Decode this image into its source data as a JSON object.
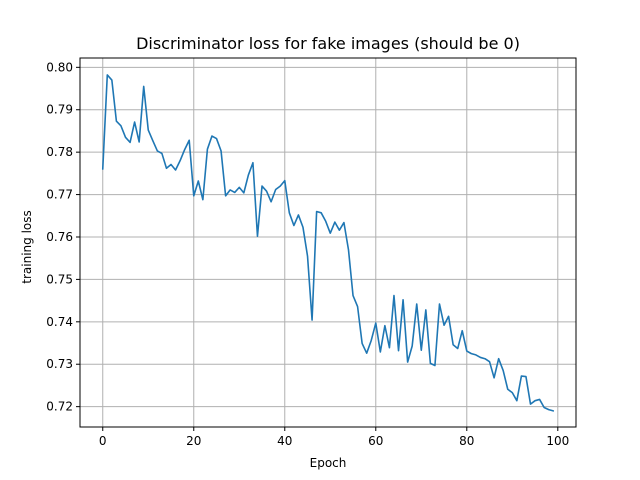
{
  "chart_data": {
    "type": "line",
    "title": "Discriminator loss for fake images (should be 0)",
    "xlabel": "Epoch",
    "ylabel": "training loss",
    "xlim": [
      -5,
      104
    ],
    "ylim": [
      0.7152,
      0.8022
    ],
    "xticks": [
      0,
      20,
      40,
      60,
      80,
      100
    ],
    "yticks": [
      0.72,
      0.73,
      0.74,
      0.75,
      0.76,
      0.77,
      0.78,
      0.79,
      0.8
    ],
    "grid": true,
    "colors": {
      "line": "#1f77b4",
      "grid": "#b0b0b0"
    },
    "series": [
      {
        "x": [
          0,
          1,
          2,
          3,
          4,
          5,
          6,
          7,
          8,
          9,
          10,
          11,
          12,
          13,
          14,
          15,
          16,
          17,
          18,
          19,
          20,
          21,
          22,
          23,
          24,
          25,
          26,
          27,
          28,
          29,
          30,
          31,
          32,
          33,
          34,
          35,
          36,
          37,
          38,
          39,
          40,
          41,
          42,
          43,
          44,
          45,
          46,
          47,
          48,
          49,
          50,
          51,
          52,
          53,
          54,
          55,
          56,
          57,
          58,
          59,
          60,
          61,
          62,
          63,
          64,
          65,
          66,
          67,
          68,
          69,
          70,
          71,
          72,
          73,
          74,
          75,
          76,
          77,
          78,
          79,
          80,
          81,
          82,
          83,
          84,
          85,
          86,
          87,
          88,
          89,
          90,
          91,
          92,
          93,
          94,
          95,
          96,
          97,
          98,
          99
        ],
        "values": [
          0.776,
          0.7982,
          0.797,
          0.7873,
          0.7862,
          0.7835,
          0.7823,
          0.7871,
          0.7824,
          0.7955,
          0.7852,
          0.7827,
          0.7803,
          0.7797,
          0.7762,
          0.7771,
          0.7758,
          0.778,
          0.7806,
          0.7828,
          0.7697,
          0.7732,
          0.7688,
          0.7807,
          0.7838,
          0.7832,
          0.7803,
          0.7697,
          0.7711,
          0.7705,
          0.7717,
          0.7704,
          0.7746,
          0.7775,
          0.7602,
          0.772,
          0.7708,
          0.7683,
          0.7712,
          0.772,
          0.7733,
          0.7657,
          0.7627,
          0.7652,
          0.7623,
          0.7555,
          0.7404,
          0.766,
          0.7657,
          0.7637,
          0.7609,
          0.7635,
          0.7616,
          0.7634,
          0.757,
          0.7462,
          0.7436,
          0.7349,
          0.7326,
          0.7356,
          0.7397,
          0.7329,
          0.7391,
          0.7339,
          0.7462,
          0.7332,
          0.7452,
          0.7305,
          0.7343,
          0.7442,
          0.7333,
          0.7428,
          0.7302,
          0.7297,
          0.7442,
          0.7392,
          0.7413,
          0.7346,
          0.7337,
          0.7379,
          0.7331,
          0.7325,
          0.7322,
          0.7316,
          0.7313,
          0.7306,
          0.7268,
          0.7313,
          0.7285,
          0.7241,
          0.7233,
          0.7214,
          0.7272,
          0.7271,
          0.7206,
          0.7214,
          0.7217,
          0.7198,
          0.7193,
          0.719
        ]
      }
    ]
  }
}
